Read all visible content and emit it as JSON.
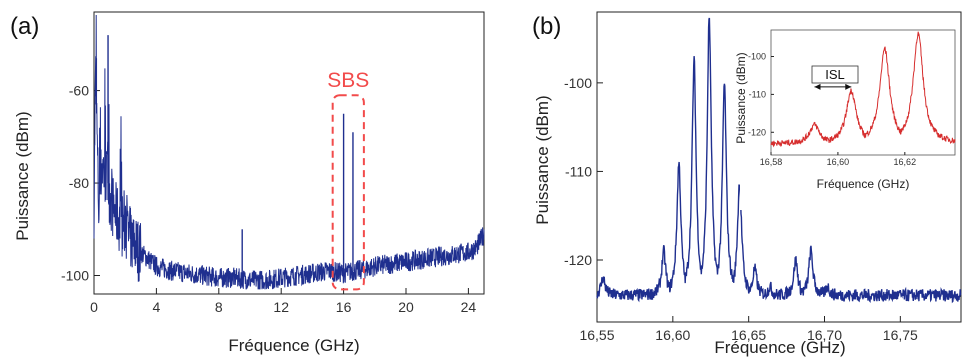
{
  "chart_data": [
    {
      "panel_label": "(a)",
      "type": "line",
      "xlabel": "Fréquence (GHz)",
      "ylabel": "Puissance (dBm)",
      "xlim": [
        0,
        25
      ],
      "ylim": [
        -104,
        -43
      ],
      "xticks": [
        0,
        4,
        8,
        12,
        16,
        20,
        24
      ],
      "xtick_labels": [
        "0",
        "4",
        "8",
        "12",
        "16",
        "20",
        "24"
      ],
      "yticks": [
        -60,
        -80,
        -100
      ],
      "ytick_labels": [
        "-60",
        "-80",
        "-100"
      ],
      "grid": false,
      "series": [
        {
          "color": "#1f2f8f",
          "x": [
            0,
            0.1,
            0.2,
            0.3,
            0.5,
            0.7,
            0.9,
            1.1,
            1.3,
            1.6,
            2.0,
            2.5,
            3.0,
            4.0,
            5.0,
            6.0,
            7.0,
            8.0,
            9.0,
            10.0,
            11.0,
            12.0,
            13.0,
            14.0,
            15.0,
            16.0,
            16.7,
            17.5,
            18.0,
            19.0,
            20.0,
            21.0,
            22.0,
            23.0,
            24.0,
            24.5,
            25.0
          ],
          "y": [
            -85,
            -56,
            -70,
            -86,
            -76,
            -78,
            -80,
            -84,
            -86,
            -88,
            -90,
            -93,
            -95,
            -98,
            -99,
            -99.5,
            -100,
            -100.5,
            -100.5,
            -101,
            -101,
            -100.5,
            -100,
            -99.5,
            -99,
            -99.5,
            -99,
            -98.5,
            -98,
            -97.5,
            -97,
            -96.5,
            -96,
            -95.5,
            -95,
            -94,
            -91
          ]
        }
      ],
      "peaks": [
        {
          "x": 0.15,
          "y": -53
        },
        {
          "x": 0.9,
          "y": -48
        },
        {
          "x": 9.5,
          "y": -90
        },
        {
          "x": 16.0,
          "y": -65
        },
        {
          "x": 16.6,
          "y": -69
        }
      ],
      "annotations": [
        {
          "text": "SBS",
          "color": "#f24b4b",
          "x_range": [
            15.3,
            17.3
          ],
          "y_range": [
            -103,
            -61
          ]
        }
      ]
    },
    {
      "panel_label": "(b)",
      "type": "line",
      "xlabel": "Fréquence (GHz)",
      "ylabel": "Puissance (dBm)",
      "xlim": [
        16.55,
        16.79
      ],
      "ylim": [
        -127,
        -92
      ],
      "xticks": [
        16.55,
        16.6,
        16.65,
        16.7,
        16.75
      ],
      "xtick_labels": [
        "16,55",
        "16,60",
        "16,65",
        "16,70",
        "16,75"
      ],
      "yticks": [
        -100,
        -110,
        -120
      ],
      "ytick_labels": [
        "-100",
        "-110",
        "-120"
      ],
      "grid": false,
      "series": [
        {
          "color": "#1f2f8f",
          "baseline": -124,
          "peaks": [
            {
              "x": 16.554,
              "y": -122
            },
            {
              "x": 16.594,
              "y": -119
            },
            {
              "x": 16.604,
              "y": -109
            },
            {
              "x": 16.614,
              "y": -97.5
            },
            {
              "x": 16.624,
              "y": -92.5
            },
            {
              "x": 16.634,
              "y": -100
            },
            {
              "x": 16.644,
              "y": -111
            },
            {
              "x": 16.654,
              "y": -121
            },
            {
              "x": 16.664,
              "y": -123
            },
            {
              "x": 16.681,
              "y": -120
            },
            {
              "x": 16.691,
              "y": -119
            },
            {
              "x": 16.702,
              "y": -123
            }
          ]
        }
      ],
      "inset": {
        "type": "line",
        "xlabel": "Fréquence (GHz)",
        "ylabel": "Puissance (dBm)",
        "xlim": [
          16.58,
          16.635
        ],
        "ylim": [
          -126,
          -93
        ],
        "xticks": [
          16.58,
          16.6,
          16.62
        ],
        "xtick_labels": [
          "16,58",
          "16,60",
          "16,62"
        ],
        "yticks": [
          -100,
          -110,
          -120
        ],
        "ytick_labels": [
          "-100",
          "-110",
          "-120"
        ],
        "annotation": "ISL",
        "series": [
          {
            "color": "#d62d2d",
            "baseline": -123,
            "peaks": [
              {
                "x": 16.593,
                "y": -118
              },
              {
                "x": 16.604,
                "y": -109
              },
              {
                "x": 16.614,
                "y": -98
              },
              {
                "x": 16.624,
                "y": -94
              }
            ]
          }
        ]
      }
    }
  ]
}
